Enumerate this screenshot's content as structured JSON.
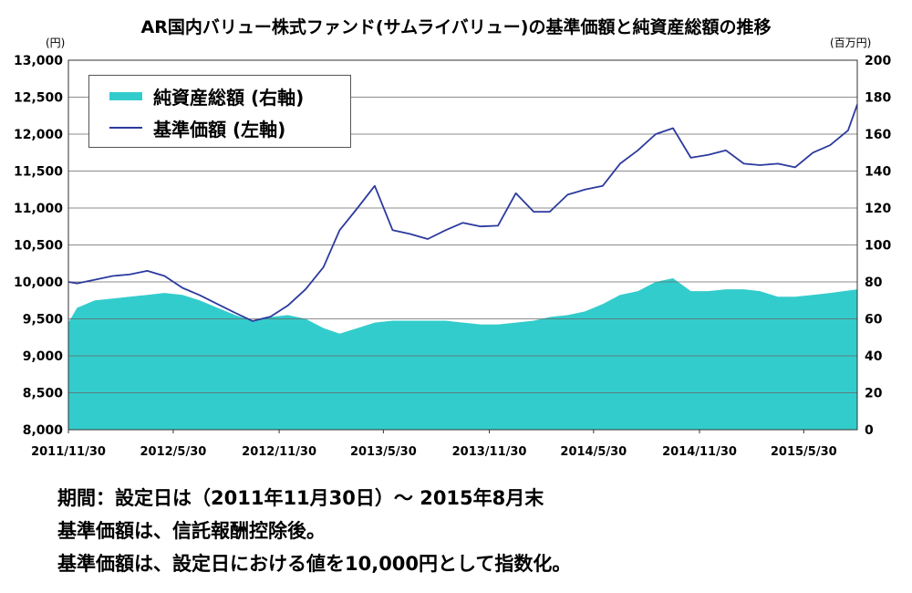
{
  "colors": {
    "nav_line": "#2c3a9e",
    "aum_area": "#33cccc",
    "grid": "#666666"
  },
  "chart_data": {
    "type": "line+area",
    "title": "AR国内バリュー株式ファンド(サムライバリュー)の基準価額と純資産総額の推移",
    "y_left_unit": "(円)",
    "y_right_unit": "(百万円)",
    "y_left_range": [
      8000,
      13000
    ],
    "y_right_range": [
      0,
      200
    ],
    "y_left_ticks": [
      "8,000",
      "8,500",
      "9,000",
      "9,500",
      "10,000",
      "10,500",
      "11,000",
      "11,500",
      "12,000",
      "12,500",
      "13,000"
    ],
    "y_right_ticks": [
      "0",
      "20",
      "40",
      "60",
      "80",
      "100",
      "120",
      "140",
      "160",
      "180",
      "200"
    ],
    "x_ticks": [
      "2011/11/30",
      "2012/5/30",
      "2012/11/30",
      "2013/5/30",
      "2013/11/30",
      "2014/5/30",
      "2014/11/30",
      "2015/5/30"
    ],
    "x_range": [
      "2011/11/30",
      "2015/8/31"
    ],
    "grid": true,
    "legend_position": "top-left",
    "series": [
      {
        "name": "純資産総額 (右軸)",
        "axis": "right",
        "type": "area",
        "points": [
          [
            "2011/11/30",
            58
          ],
          [
            "2011/12/15",
            66
          ],
          [
            "2012/1/15",
            70
          ],
          [
            "2012/2/15",
            71
          ],
          [
            "2012/3/15",
            72
          ],
          [
            "2012/4/15",
            73
          ],
          [
            "2012/5/15",
            74
          ],
          [
            "2012/6/15",
            73
          ],
          [
            "2012/7/15",
            70
          ],
          [
            "2012/8/15",
            66
          ],
          [
            "2012/9/15",
            62
          ],
          [
            "2012/10/15",
            59
          ],
          [
            "2012/11/15",
            61
          ],
          [
            "2012/12/15",
            62
          ],
          [
            "2013/1/15",
            60
          ],
          [
            "2013/2/15",
            55
          ],
          [
            "2013/3/15",
            52
          ],
          [
            "2013/4/15",
            55
          ],
          [
            "2013/5/15",
            58
          ],
          [
            "2013/6/15",
            59
          ],
          [
            "2013/7/15",
            59
          ],
          [
            "2013/8/15",
            59
          ],
          [
            "2013/9/15",
            59
          ],
          [
            "2013/10/15",
            58
          ],
          [
            "2013/11/15",
            57
          ],
          [
            "2013/12/15",
            57
          ],
          [
            "2014/1/15",
            58
          ],
          [
            "2014/2/15",
            59
          ],
          [
            "2014/3/15",
            61
          ],
          [
            "2014/4/15",
            62
          ],
          [
            "2014/5/15",
            64
          ],
          [
            "2014/6/15",
            68
          ],
          [
            "2014/7/15",
            73
          ],
          [
            "2014/8/15",
            75
          ],
          [
            "2014/9/15",
            80
          ],
          [
            "2014/10/15",
            82
          ],
          [
            "2014/11/15",
            75
          ],
          [
            "2014/12/15",
            75
          ],
          [
            "2015/1/15",
            76
          ],
          [
            "2015/2/15",
            76
          ],
          [
            "2015/3/15",
            75
          ],
          [
            "2015/4/15",
            72
          ],
          [
            "2015/5/15",
            72
          ],
          [
            "2015/6/15",
            73
          ],
          [
            "2015/7/15",
            74
          ],
          [
            "2015/8/31",
            76
          ]
        ]
      },
      {
        "name": "基準価額 (左軸)",
        "axis": "left",
        "type": "line",
        "points": [
          [
            "2011/11/30",
            10000
          ],
          [
            "2011/12/15",
            9980
          ],
          [
            "2012/1/15",
            10030
          ],
          [
            "2012/2/15",
            10080
          ],
          [
            "2012/3/15",
            10100
          ],
          [
            "2012/4/15",
            10150
          ],
          [
            "2012/5/15",
            10080
          ],
          [
            "2012/6/15",
            9920
          ],
          [
            "2012/7/15",
            9820
          ],
          [
            "2012/8/15",
            9700
          ],
          [
            "2012/9/15",
            9580
          ],
          [
            "2012/10/15",
            9470
          ],
          [
            "2012/11/15",
            9530
          ],
          [
            "2012/12/15",
            9680
          ],
          [
            "2013/1/15",
            9900
          ],
          [
            "2013/2/15",
            10200
          ],
          [
            "2013/3/15",
            10700
          ],
          [
            "2013/4/15",
            11000
          ],
          [
            "2013/5/15",
            11300
          ],
          [
            "2013/6/15",
            10700
          ],
          [
            "2013/7/15",
            10650
          ],
          [
            "2013/8/15",
            10580
          ],
          [
            "2013/9/15",
            10700
          ],
          [
            "2013/10/15",
            10800
          ],
          [
            "2013/11/15",
            10750
          ],
          [
            "2013/12/15",
            10760
          ],
          [
            "2014/1/15",
            11200
          ],
          [
            "2014/2/15",
            10950
          ],
          [
            "2014/3/15",
            10950
          ],
          [
            "2014/4/15",
            11180
          ],
          [
            "2014/5/15",
            11250
          ],
          [
            "2014/6/15",
            11300
          ],
          [
            "2014/7/15",
            11600
          ],
          [
            "2014/8/15",
            11780
          ],
          [
            "2014/9/15",
            12000
          ],
          [
            "2014/10/15",
            12080
          ],
          [
            "2014/11/15",
            11680
          ],
          [
            "2014/12/15",
            11720
          ],
          [
            "2015/1/15",
            11780
          ],
          [
            "2015/2/15",
            11600
          ],
          [
            "2015/3/15",
            11580
          ],
          [
            "2015/4/15",
            11600
          ],
          [
            "2015/5/15",
            11550
          ],
          [
            "2015/6/15",
            11750
          ],
          [
            "2015/7/15",
            11850
          ],
          [
            "2015/8/15",
            12050
          ],
          [
            "2015/8/31",
            12400
          ]
        ]
      }
    ]
  },
  "notes": [
    "期間：設定日は（2011年11月30日）～ 2015年8月末",
    "基準価額は、信託報酬控除後。",
    "基準価額は、設定日における値を10,000円として指数化。"
  ]
}
